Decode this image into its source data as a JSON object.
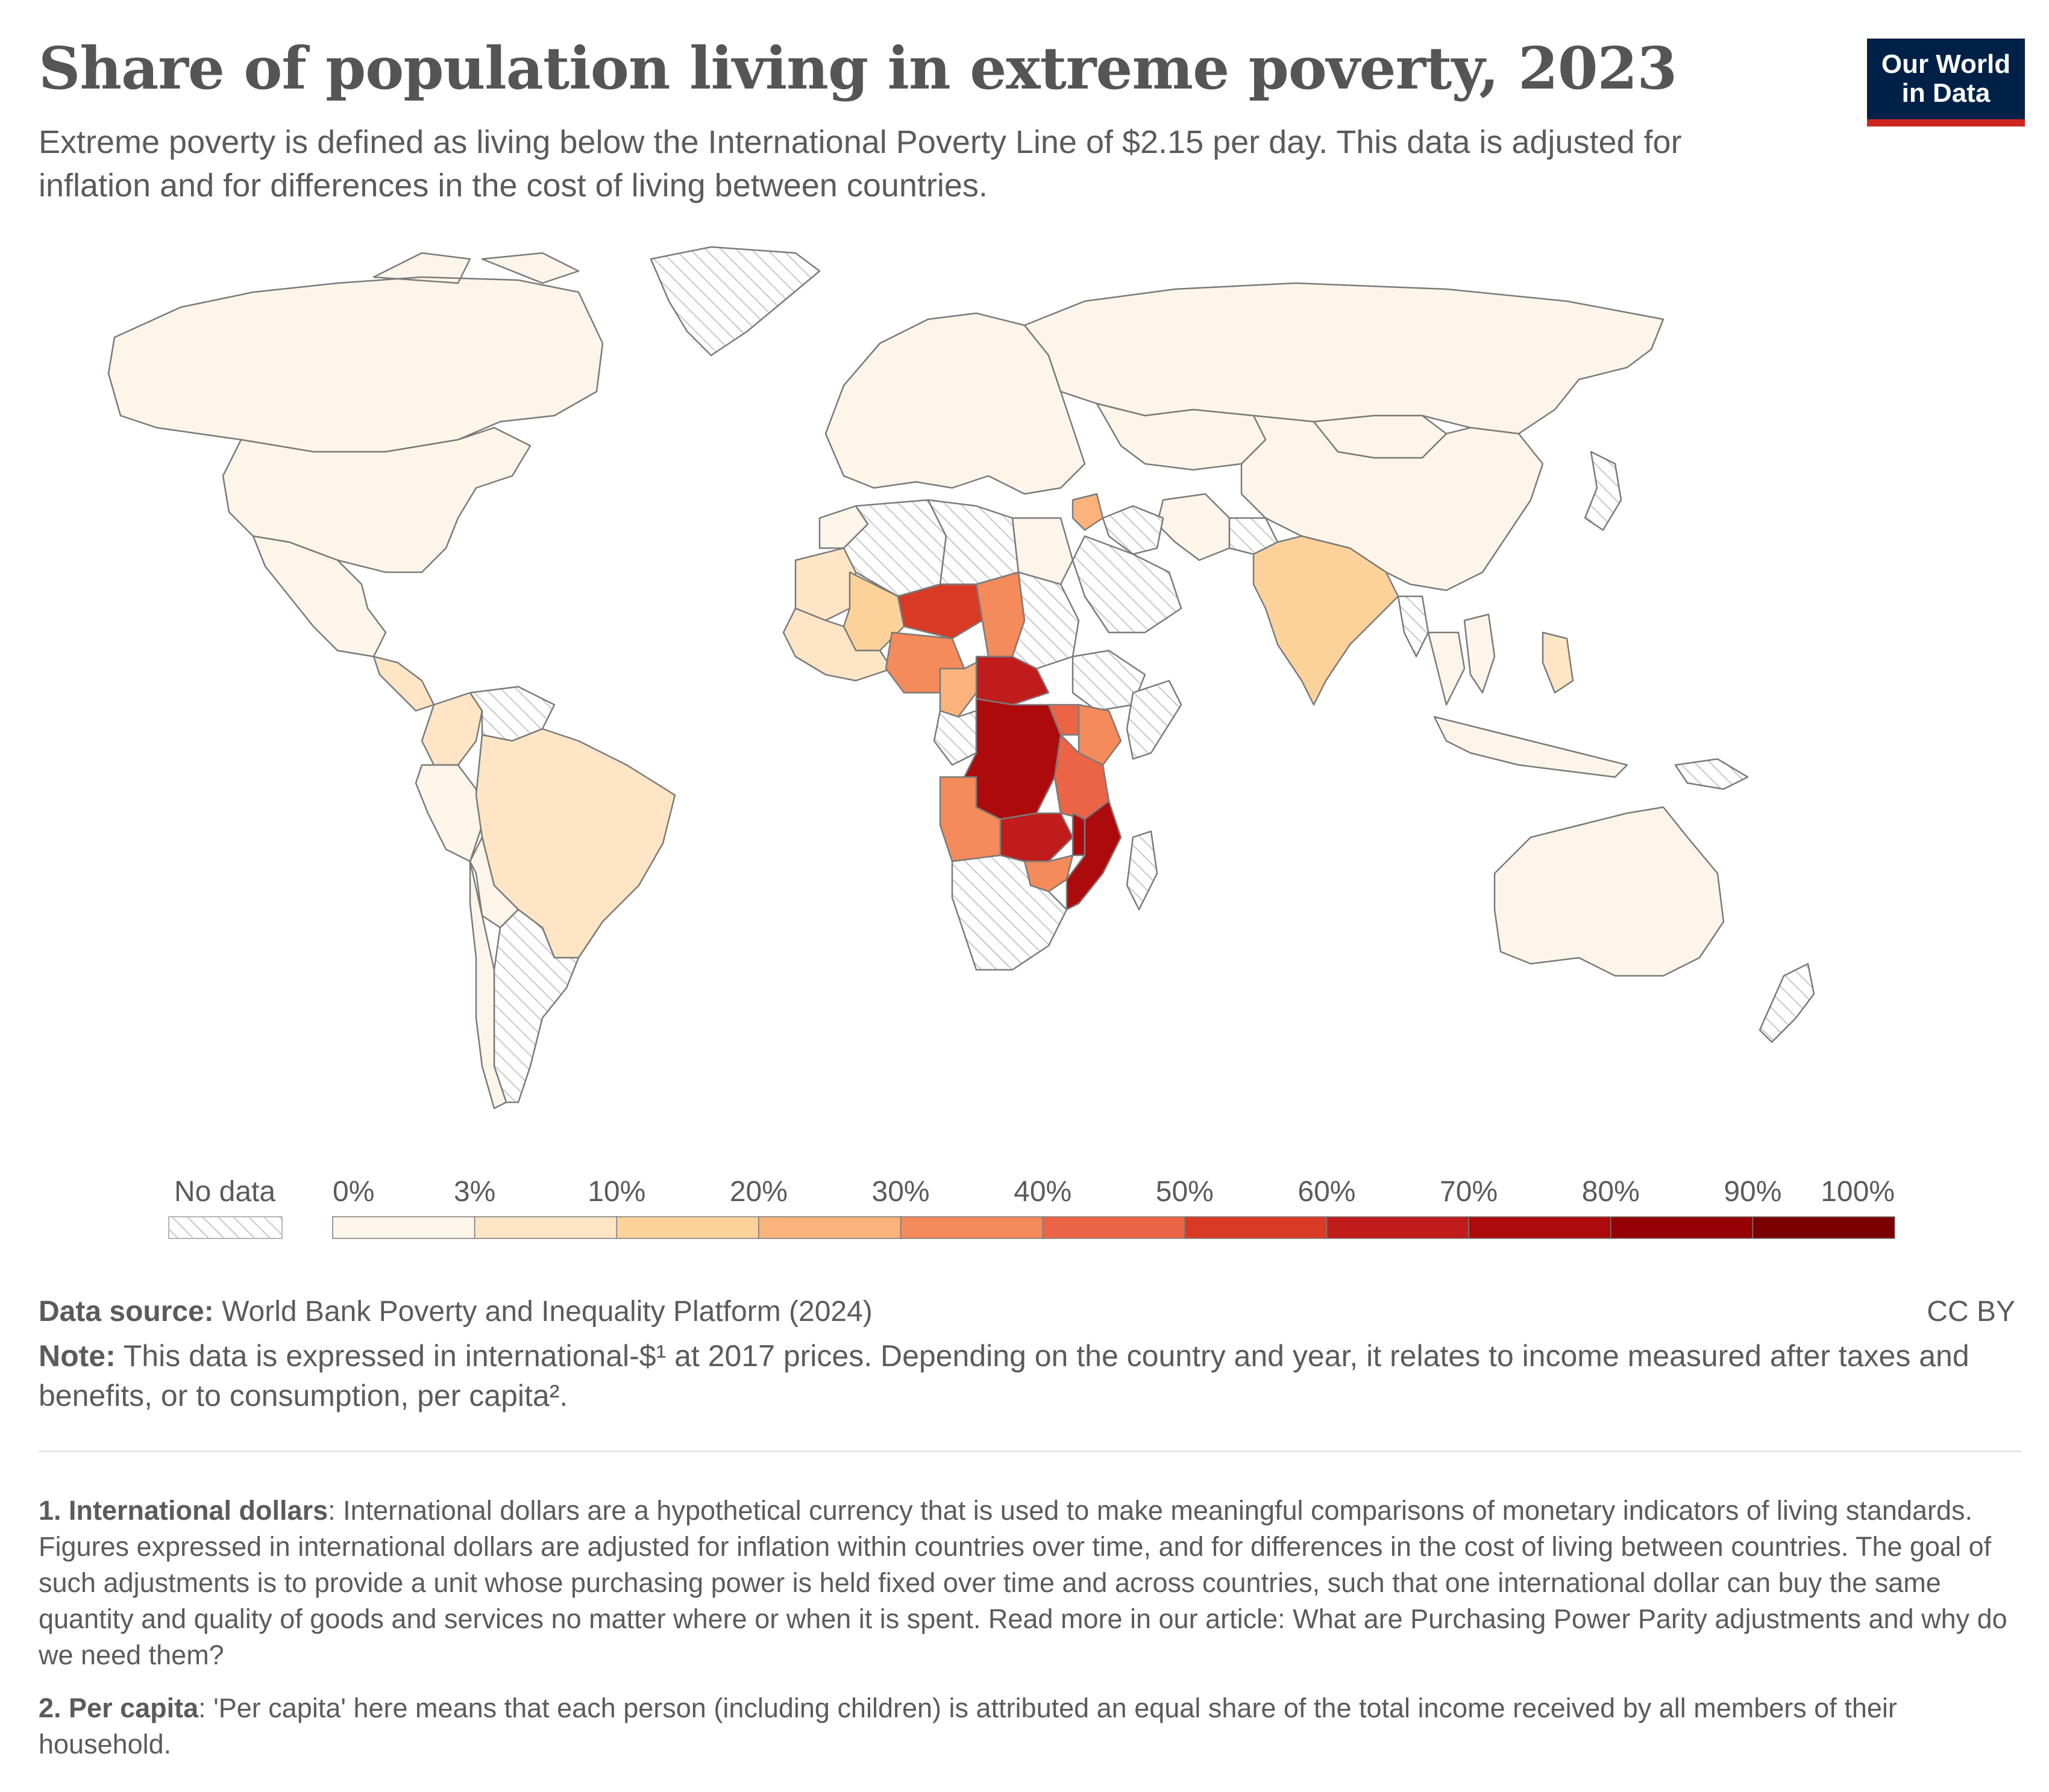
{
  "header": {
    "title": "Share of population living in extreme poverty, 2023",
    "subtitle": "Extreme poverty is defined as living below the International Poverty Line of $2.15 per day. This data is adjusted for inflation and for differences in the cost of living between countries."
  },
  "logo": {
    "line1": "Our World",
    "line2": "in Data"
  },
  "colors": {
    "bins": [
      "#fef5ea",
      "#fde5c5",
      "#fcd29a",
      "#fbb37b",
      "#f58a5a",
      "#ec6446",
      "#d93a26",
      "#c01c1b",
      "#ad0a0c",
      "#960005",
      "#7b0002"
    ],
    "border": "#7a7a7a",
    "no_data_fill": "#ffffff",
    "hatch": "#c8c8c8",
    "accent_brand": "#002147",
    "accent_red": "#ce261e"
  },
  "legend": {
    "no_data_label": "No data",
    "ticks": [
      "0%",
      "3%",
      "10%",
      "20%",
      "30%",
      "40%",
      "50%",
      "60%",
      "70%",
      "80%",
      "90%",
      "100%"
    ]
  },
  "map_data": {
    "metric": "Share of population living in extreme poverty (%)",
    "year": 2023,
    "regions": [
      {
        "name": "Canada",
        "value": 0.5
      },
      {
        "name": "United States",
        "value": 1
      },
      {
        "name": "Mexico",
        "value": 1
      },
      {
        "name": "Central America",
        "value": 3
      },
      {
        "name": "Colombia",
        "value": 8
      },
      {
        "name": "Venezuela",
        "value": null
      },
      {
        "name": "Peru",
        "value": 2
      },
      {
        "name": "Brazil",
        "value": 5
      },
      {
        "name": "Bolivia",
        "value": 2
      },
      {
        "name": "Argentina",
        "value": null
      },
      {
        "name": "Chile",
        "value": 0.5
      },
      {
        "name": "Greenland",
        "value": null
      },
      {
        "name": "Europe",
        "value": 0.5
      },
      {
        "name": "Russia",
        "value": 0.5
      },
      {
        "name": "China",
        "value": 0.5
      },
      {
        "name": "Mongolia",
        "value": 0.5
      },
      {
        "name": "Kazakhstan",
        "value": 0.5
      },
      {
        "name": "Iran",
        "value": 0.5
      },
      {
        "name": "Syria",
        "value": 25
      },
      {
        "name": "Iraq",
        "value": null
      },
      {
        "name": "Saudi Arabia",
        "value": null
      },
      {
        "name": "Afghanistan",
        "value": null
      },
      {
        "name": "India",
        "value": 12
      },
      {
        "name": "Myanmar",
        "value": null
      },
      {
        "name": "Thailand",
        "value": 0.5
      },
      {
        "name": "Vietnam",
        "value": 1
      },
      {
        "name": "Philippines",
        "value": 3
      },
      {
        "name": "Indonesia",
        "value": 2
      },
      {
        "name": "Papua New Guinea",
        "value": null
      },
      {
        "name": "Australia",
        "value": 0.5
      },
      {
        "name": "New Zealand",
        "value": null
      },
      {
        "name": "Japan",
        "value": null
      },
      {
        "name": "Morocco",
        "value": 1
      },
      {
        "name": "Algeria",
        "value": null
      },
      {
        "name": "Libya",
        "value": null
      },
      {
        "name": "Egypt",
        "value": 1
      },
      {
        "name": "Mauritania",
        "value": 5
      },
      {
        "name": "Mali",
        "value": 18
      },
      {
        "name": "Niger",
        "value": 52
      },
      {
        "name": "Chad",
        "value": 33
      },
      {
        "name": "Sudan",
        "value": null
      },
      {
        "name": "West Africa coast",
        "value": 8
      },
      {
        "name": "Nigeria",
        "value": 30
      },
      {
        "name": "Cameroon",
        "value": 25
      },
      {
        "name": "Central African Republic",
        "value": 65
      },
      {
        "name": "Ethiopia",
        "value": null
      },
      {
        "name": "Somalia",
        "value": null
      },
      {
        "name": "Gabon / Congo",
        "value": null
      },
      {
        "name": "DR Congo",
        "value": 78
      },
      {
        "name": "Uganda",
        "value": 40
      },
      {
        "name": "Kenya",
        "value": 35
      },
      {
        "name": "Tanzania",
        "value": 45
      },
      {
        "name": "Angola",
        "value": 30
      },
      {
        "name": "Zambia",
        "value": 62
      },
      {
        "name": "Malawi",
        "value": 70
      },
      {
        "name": "Mozambique",
        "value": 75
      },
      {
        "name": "Zimbabwe",
        "value": 35
      },
      {
        "name": "Namibia / Botswana / South Africa",
        "value": null
      },
      {
        "name": "Madagascar",
        "value": null
      }
    ]
  },
  "footer": {
    "source_label": "Data source:",
    "source_text": "World Bank Poverty and Inequality Platform (2024)",
    "license": "CC BY",
    "note_label": "Note:",
    "note_text": "This data is expressed in international-$¹ at 2017 prices. Depending on the country and year, it relates to income measured after taxes and benefits, or to consumption, per capita².",
    "fn1_label": "1. International dollars",
    "fn1_text": ": International dollars are a hypothetical currency that is used to make meaningful comparisons of monetary indicators of living standards. Figures expressed in international dollars are adjusted for inflation within countries over time, and for differences in the cost of living between countries. The goal of such adjustments is to provide a unit whose purchasing power is held fixed over time and across countries, such that one international dollar can buy the same quantity and quality of goods and services no matter where or when it is spent. Read more in our article: What are Purchasing Power Parity adjustments and why do we need them?",
    "fn2_label": "2. Per capita",
    "fn2_text": ": 'Per capita' here means that each person (including children) is attributed an equal share of the total income received by all members of their household."
  }
}
